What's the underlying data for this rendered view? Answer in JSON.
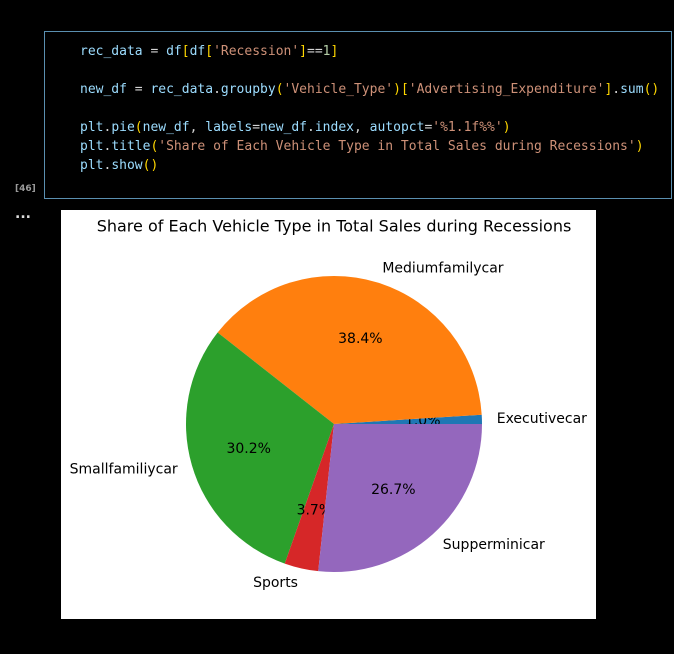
{
  "cell": {
    "prompt": "[46]",
    "code_blocks": [
      [
        "rec_data = df[df['Recession']==1]"
      ],
      [
        "new_df = rec_data.groupby('Vehicle_Type')['Advertising_Expenditure'].sum()"
      ],
      [
        "plt.pie(new_df, labels=new_df.index, autopct='%1.1f%%')",
        "plt.title('Share of Each Vehicle Type in Total Sales during Recessions')",
        "plt.show()"
      ]
    ],
    "output_marker": "..."
  },
  "chart_data": {
    "type": "pie",
    "title": "Share of Each Vehicle Type in Total Sales during Recessions",
    "categories": [
      "Executivecar",
      "Mediumfamilycar",
      "Smallfamiliycar",
      "Sports",
      "Supperminicar"
    ],
    "values": [
      1.0,
      38.4,
      30.2,
      3.7,
      26.7
    ],
    "value_labels": [
      "1.0%",
      "38.4%",
      "30.2%",
      "3.7%",
      "26.7%"
    ],
    "colors": [
      "#1f77b4",
      "#ff7f0e",
      "#2ca02c",
      "#d62728",
      "#9467bd"
    ]
  }
}
